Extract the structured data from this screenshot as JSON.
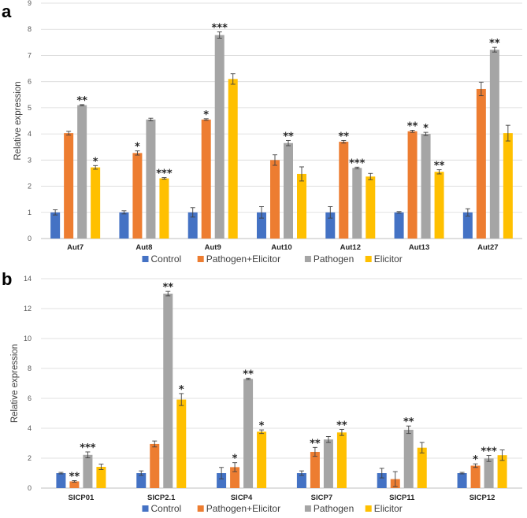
{
  "colors": {
    "control": "#4472c4",
    "pathogen_elicitor": "#ed7d31",
    "pathogen": "#a5a5a5",
    "elicitor": "#ffc000"
  },
  "chart_data": [
    {
      "type": "bar",
      "panel_label": "a",
      "ylabel": "Relative expression",
      "ylim": [
        0,
        9
      ],
      "yticks": [
        0,
        1,
        2,
        3,
        4,
        5,
        6,
        7,
        8,
        9
      ],
      "grid": true,
      "legend_position": "bottom",
      "categories": [
        "Aut7",
        "Aut8",
        "Aut9",
        "Aut10",
        "Aut12",
        "Aut13",
        "Aut27"
      ],
      "series": [
        {
          "name": "Control",
          "color": "#4472c4",
          "values": [
            1.0,
            1.0,
            1.0,
            1.0,
            1.0,
            1.0,
            1.0
          ],
          "errors": [
            0.1,
            0.06,
            0.18,
            0.22,
            0.22,
            0.03,
            0.14
          ],
          "stars": [
            "",
            "",
            "",
            "",
            "",
            "",
            ""
          ]
        },
        {
          "name": "Pathogen+Elicitor",
          "color": "#ed7d31",
          "values": [
            4.03,
            3.27,
            4.55,
            3.0,
            3.7,
            4.1,
            5.72
          ],
          "errors": [
            0.07,
            0.08,
            0.03,
            0.2,
            0.05,
            0.04,
            0.26
          ],
          "stars": [
            "",
            "*",
            "*",
            "",
            "**",
            "**",
            ""
          ]
        },
        {
          "name": "Pathogen",
          "color": "#a5a5a5",
          "values": [
            5.1,
            4.55,
            7.78,
            3.65,
            2.7,
            4.0,
            7.22
          ],
          "errors": [
            0.02,
            0.05,
            0.12,
            0.1,
            0.03,
            0.06,
            0.09
          ],
          "stars": [
            "**",
            "",
            "***",
            "**",
            "***",
            "*",
            "**"
          ]
        },
        {
          "name": "Elicitor",
          "color": "#ffc000",
          "values": [
            2.72,
            2.3,
            6.1,
            2.47,
            2.37,
            2.55,
            4.03
          ],
          "errors": [
            0.07,
            0.03,
            0.2,
            0.27,
            0.12,
            0.08,
            0.3
          ],
          "stars": [
            "*",
            "***",
            "",
            "",
            "",
            "**",
            ""
          ]
        }
      ]
    },
    {
      "type": "bar",
      "panel_label": "b",
      "ylabel": "Relative expression",
      "ylim": [
        0,
        14
      ],
      "yticks": [
        0,
        2,
        4,
        6,
        8,
        10,
        12,
        14
      ],
      "grid": true,
      "legend_position": "bottom",
      "categories": [
        "SlCP01",
        "SlCP2.1",
        "SlCP4",
        "SlCP7",
        "SlCP11",
        "SlCP12"
      ],
      "series": [
        {
          "name": "Control",
          "color": "#4472c4",
          "values": [
            1.0,
            1.0,
            1.0,
            1.0,
            1.0,
            1.0
          ],
          "errors": [
            0.05,
            0.15,
            0.38,
            0.15,
            0.32,
            0.05
          ],
          "stars": [
            "",
            "",
            "",
            "",
            "",
            ""
          ]
        },
        {
          "name": "Pathogen+Elicitor",
          "color": "#ed7d31",
          "values": [
            0.45,
            2.95,
            1.4,
            2.42,
            0.6,
            1.5
          ],
          "errors": [
            0.05,
            0.2,
            0.3,
            0.3,
            0.5,
            0.12
          ],
          "stars": [
            "**",
            "",
            "*",
            "**",
            "",
            "*"
          ]
        },
        {
          "name": "Pathogen",
          "color": "#a5a5a5",
          "values": [
            2.22,
            13.0,
            7.3,
            3.25,
            3.9,
            1.98
          ],
          "errors": [
            0.2,
            0.15,
            0.05,
            0.2,
            0.25,
            0.2
          ],
          "stars": [
            "***",
            "**",
            "**",
            "",
            "**",
            "***"
          ]
        },
        {
          "name": "Elicitor",
          "color": "#ffc000",
          "values": [
            1.42,
            5.92,
            3.77,
            3.72,
            2.7,
            2.2
          ],
          "errors": [
            0.18,
            0.4,
            0.12,
            0.2,
            0.35,
            0.35
          ],
          "stars": [
            "",
            "*",
            "*",
            "**",
            "",
            ""
          ]
        }
      ]
    }
  ],
  "legend": [
    "Control",
    "Pathogen+Elicitor",
    "Pathogen",
    "Elicitor"
  ]
}
